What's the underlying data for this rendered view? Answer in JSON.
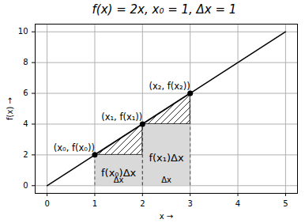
{
  "chart_data": {
    "type": "line",
    "title": "f(x) = 2x, x₀ = 1, Δx = 1",
    "x_label": "x",
    "y_label": "f(x)",
    "x": [
      0,
      5
    ],
    "values": [
      0,
      10
    ],
    "color": "#000000",
    "points": {
      "x": [
        1,
        2,
        3
      ],
      "y": [
        2,
        4,
        6
      ],
      "labels": [
        "(x₀, f(x₀))",
        "(x₁, f(x₁))",
        "(x₂, f(x₂))"
      ]
    },
    "rectangles": [
      {
        "x0": 1,
        "x1": 2,
        "y0": 0,
        "y1": 2,
        "label": "f(x₀)Δx",
        "width_label": "Δx",
        "color": "#d9d9d9"
      },
      {
        "x0": 2,
        "x1": 3,
        "y0": 0,
        "y1": 4,
        "label": "f(x₁)Δx",
        "width_label": "Δx",
        "color": "#d9d9d9"
      }
    ],
    "triangles": [
      {
        "x": [
          1,
          2
        ],
        "y_low": [
          2,
          2
        ],
        "y_high": [
          2,
          4
        ]
      },
      {
        "x": [
          2,
          3
        ],
        "y_low": [
          4,
          4
        ],
        "y_high": [
          4,
          6
        ]
      }
    ],
    "xlim": [
      -0.25,
      5.25
    ],
    "ylim": [
      -0.5,
      10.5
    ],
    "xticks": [
      0,
      1,
      2,
      3,
      4,
      5
    ],
    "yticks": [
      0,
      2,
      4,
      6,
      8,
      10
    ],
    "grid": true
  }
}
